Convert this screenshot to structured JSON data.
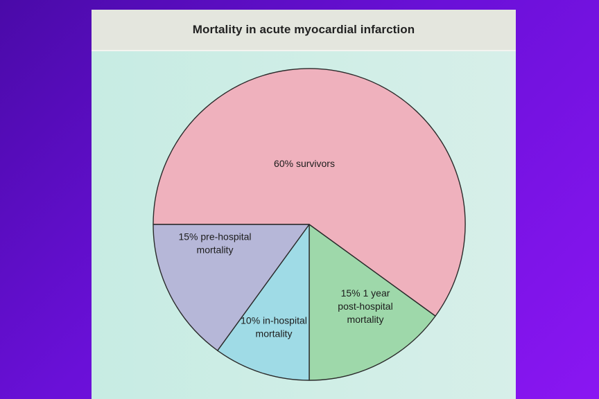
{
  "chart_data": {
    "type": "pie",
    "title": "Mortality in acute myocardial infarction",
    "slices": [
      {
        "label_lines": [
          "60% survivors"
        ],
        "value": 60,
        "color": "#efb1bd"
      },
      {
        "label_lines": [
          "15% 1 year",
          "post-hospital",
          "mortality"
        ],
        "value": 15,
        "color": "#9ed8aa"
      },
      {
        "label_lines": [
          "10% in-hospital",
          "mortality"
        ],
        "value": 10,
        "color": "#9fdbe6"
      },
      {
        "label_lines": [
          "15% pre-hospital",
          "mortality"
        ],
        "value": 15,
        "color": "#b6b7d8"
      }
    ]
  }
}
